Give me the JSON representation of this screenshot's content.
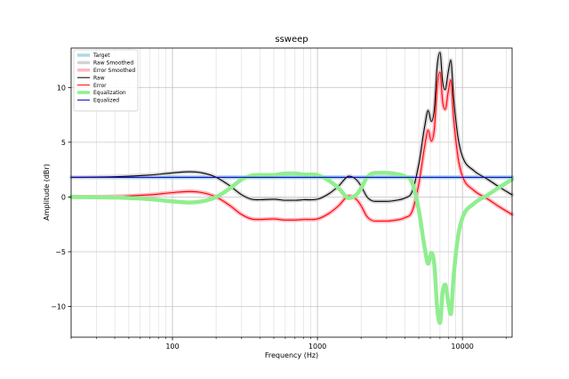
{
  "chart_data": {
    "type": "line",
    "title": "ssweep",
    "xlabel": "Frequency (Hz)",
    "ylabel": "Amplitude (dBr)",
    "xscale": "log",
    "xlim": [
      20,
      22000
    ],
    "ylim": [
      -12.8,
      13.6
    ],
    "grid": true,
    "legend_placement": "top-left",
    "x_tick_labels": [
      {
        "value": 100,
        "label": "100"
      },
      {
        "value": 1000,
        "label": "1000"
      },
      {
        "value": 10000,
        "label": "10000"
      }
    ],
    "y_tick_labels": [
      {
        "value": -10,
        "label": "−10"
      },
      {
        "value": -5,
        "label": "−5"
      },
      {
        "value": 0,
        "label": "0"
      },
      {
        "value": 5,
        "label": "5"
      },
      {
        "value": 10,
        "label": "10"
      }
    ],
    "series": [
      {
        "name": "Target",
        "color": "#add8e6",
        "style": "thick",
        "points": [
          [
            20,
            1.8
          ],
          [
            22000,
            1.8
          ]
        ]
      },
      {
        "name": "Raw Smoothed",
        "color": "#d3d3d3",
        "style": "thick",
        "points": [
          [
            20,
            1.8
          ],
          [
            40,
            1.85
          ],
          [
            70,
            2.0
          ],
          [
            100,
            2.2
          ],
          [
            130,
            2.3
          ],
          [
            160,
            2.2
          ],
          [
            200,
            1.8
          ],
          [
            250,
            1.0
          ],
          [
            300,
            0.2
          ],
          [
            350,
            -0.2
          ],
          [
            400,
            -0.25
          ],
          [
            500,
            -0.2
          ],
          [
            600,
            -0.3
          ],
          [
            700,
            -0.3
          ],
          [
            800,
            -0.25
          ],
          [
            1000,
            -0.2
          ],
          [
            1200,
            0.3
          ],
          [
            1400,
            1.0
          ],
          [
            1650,
            1.9
          ],
          [
            1850,
            1.6
          ],
          [
            2000,
            1.0
          ],
          [
            2200,
            0.0
          ],
          [
            2500,
            -0.4
          ],
          [
            3000,
            -0.4
          ],
          [
            3500,
            -0.3
          ],
          [
            4000,
            -0.1
          ],
          [
            4500,
            0.5
          ],
          [
            5000,
            3.0
          ],
          [
            5500,
            6.5
          ],
          [
            5800,
            7.9
          ],
          [
            6100,
            6.9
          ],
          [
            6400,
            8.0
          ],
          [
            6700,
            12.0
          ],
          [
            7000,
            13.2
          ],
          [
            7300,
            10.5
          ],
          [
            7600,
            9.8
          ],
          [
            8000,
            11.5
          ],
          [
            8300,
            12.5
          ],
          [
            8700,
            9.0
          ],
          [
            9300,
            5.5
          ],
          [
            10000,
            3.7
          ],
          [
            12000,
            2.4
          ],
          [
            15000,
            1.6
          ],
          [
            18000,
            0.9
          ],
          [
            22000,
            0.2
          ]
        ]
      },
      {
        "name": "Error Smoothed",
        "color": "#ffb6c1",
        "style": "thick",
        "points": [
          [
            20,
            0.0
          ],
          [
            40,
            0.05
          ],
          [
            70,
            0.2
          ],
          [
            100,
            0.4
          ],
          [
            130,
            0.5
          ],
          [
            160,
            0.4
          ],
          [
            200,
            0.0
          ],
          [
            250,
            -0.8
          ],
          [
            300,
            -1.6
          ],
          [
            350,
            -2.0
          ],
          [
            400,
            -2.05
          ],
          [
            500,
            -2.0
          ],
          [
            600,
            -2.1
          ],
          [
            700,
            -2.1
          ],
          [
            800,
            -2.05
          ],
          [
            1000,
            -2.0
          ],
          [
            1200,
            -1.5
          ],
          [
            1400,
            -0.8
          ],
          [
            1650,
            0.1
          ],
          [
            1850,
            -0.2
          ],
          [
            2000,
            -0.8
          ],
          [
            2200,
            -1.8
          ],
          [
            2500,
            -2.2
          ],
          [
            3000,
            -2.2
          ],
          [
            3500,
            -2.1
          ],
          [
            4000,
            -1.9
          ],
          [
            4500,
            -1.3
          ],
          [
            5000,
            1.2
          ],
          [
            5500,
            4.7
          ],
          [
            5800,
            6.1
          ],
          [
            6100,
            5.1
          ],
          [
            6400,
            6.2
          ],
          [
            6700,
            10.2
          ],
          [
            7000,
            11.4
          ],
          [
            7300,
            8.7
          ],
          [
            7600,
            8.0
          ],
          [
            8000,
            9.7
          ],
          [
            8300,
            10.7
          ],
          [
            8700,
            7.2
          ],
          [
            9300,
            3.7
          ],
          [
            10000,
            1.9
          ],
          [
            12000,
            0.6
          ],
          [
            15000,
            -0.2
          ],
          [
            18000,
            -0.9
          ],
          [
            22000,
            -1.6
          ]
        ]
      },
      {
        "name": "Raw",
        "color": "#000000",
        "style": "thin",
        "points": [
          [
            20,
            1.8
          ],
          [
            40,
            1.85
          ],
          [
            70,
            2.0
          ],
          [
            100,
            2.2
          ],
          [
            130,
            2.3
          ],
          [
            160,
            2.2
          ],
          [
            200,
            1.8
          ],
          [
            250,
            1.0
          ],
          [
            300,
            0.2
          ],
          [
            350,
            -0.2
          ],
          [
            400,
            -0.25
          ],
          [
            500,
            -0.2
          ],
          [
            600,
            -0.3
          ],
          [
            700,
            -0.3
          ],
          [
            800,
            -0.25
          ],
          [
            1000,
            -0.2
          ],
          [
            1200,
            0.3
          ],
          [
            1400,
            1.0
          ],
          [
            1650,
            1.9
          ],
          [
            1850,
            1.6
          ],
          [
            2000,
            1.0
          ],
          [
            2200,
            0.0
          ],
          [
            2500,
            -0.4
          ],
          [
            3000,
            -0.4
          ],
          [
            3500,
            -0.3
          ],
          [
            4000,
            -0.1
          ],
          [
            4500,
            0.5
          ],
          [
            5000,
            3.0
          ],
          [
            5500,
            6.5
          ],
          [
            5800,
            7.9
          ],
          [
            6100,
            6.9
          ],
          [
            6400,
            8.0
          ],
          [
            6700,
            12.0
          ],
          [
            7000,
            13.2
          ],
          [
            7300,
            10.5
          ],
          [
            7600,
            9.8
          ],
          [
            8000,
            11.5
          ],
          [
            8300,
            12.5
          ],
          [
            8700,
            9.0
          ],
          [
            9300,
            5.5
          ],
          [
            10000,
            3.7
          ],
          [
            12000,
            2.4
          ],
          [
            15000,
            1.6
          ],
          [
            18000,
            0.9
          ],
          [
            22000,
            0.2
          ]
        ]
      },
      {
        "name": "Error",
        "color": "#ff0000",
        "style": "thin",
        "points": [
          [
            20,
            0.0
          ],
          [
            40,
            0.05
          ],
          [
            70,
            0.2
          ],
          [
            100,
            0.4
          ],
          [
            130,
            0.5
          ],
          [
            160,
            0.4
          ],
          [
            200,
            0.0
          ],
          [
            250,
            -0.8
          ],
          [
            300,
            -1.6
          ],
          [
            350,
            -2.0
          ],
          [
            400,
            -2.05
          ],
          [
            500,
            -2.0
          ],
          [
            600,
            -2.1
          ],
          [
            700,
            -2.1
          ],
          [
            800,
            -2.05
          ],
          [
            1000,
            -2.0
          ],
          [
            1200,
            -1.5
          ],
          [
            1400,
            -0.8
          ],
          [
            1650,
            0.1
          ],
          [
            1850,
            -0.2
          ],
          [
            2000,
            -0.8
          ],
          [
            2200,
            -1.8
          ],
          [
            2500,
            -2.2
          ],
          [
            3000,
            -2.2
          ],
          [
            3500,
            -2.1
          ],
          [
            4000,
            -1.9
          ],
          [
            4500,
            -1.3
          ],
          [
            5000,
            1.2
          ],
          [
            5500,
            4.7
          ],
          [
            5800,
            6.1
          ],
          [
            6100,
            5.1
          ],
          [
            6400,
            6.2
          ],
          [
            6700,
            10.2
          ],
          [
            7000,
            11.4
          ],
          [
            7300,
            8.7
          ],
          [
            7600,
            8.0
          ],
          [
            8000,
            9.7
          ],
          [
            8300,
            10.7
          ],
          [
            8700,
            7.2
          ],
          [
            9300,
            3.7
          ],
          [
            10000,
            1.9
          ],
          [
            12000,
            0.6
          ],
          [
            15000,
            -0.2
          ],
          [
            18000,
            -0.9
          ],
          [
            22000,
            -1.6
          ]
        ]
      },
      {
        "name": "Equalization",
        "color": "#90ee90",
        "style": "thick",
        "points": [
          [
            20,
            0.0
          ],
          [
            40,
            -0.05
          ],
          [
            70,
            -0.2
          ],
          [
            100,
            -0.4
          ],
          [
            130,
            -0.5
          ],
          [
            160,
            -0.4
          ],
          [
            200,
            0.0
          ],
          [
            250,
            0.8
          ],
          [
            300,
            1.6
          ],
          [
            350,
            1.95
          ],
          [
            400,
            2.0
          ],
          [
            500,
            2.0
          ],
          [
            600,
            2.15
          ],
          [
            700,
            2.15
          ],
          [
            800,
            2.05
          ],
          [
            1000,
            2.0
          ],
          [
            1200,
            1.5
          ],
          [
            1400,
            0.8
          ],
          [
            1650,
            -0.1
          ],
          [
            1850,
            0.2
          ],
          [
            2000,
            0.8
          ],
          [
            2200,
            1.8
          ],
          [
            2500,
            2.2
          ],
          [
            3000,
            2.2
          ],
          [
            3500,
            2.1
          ],
          [
            4000,
            1.9
          ],
          [
            4500,
            1.3
          ],
          [
            5000,
            -1.2
          ],
          [
            5500,
            -4.7
          ],
          [
            5800,
            -6.1
          ],
          [
            6100,
            -5.1
          ],
          [
            6400,
            -6.2
          ],
          [
            6700,
            -10.2
          ],
          [
            7000,
            -11.5
          ],
          [
            7300,
            -8.7
          ],
          [
            7600,
            -8.0
          ],
          [
            8000,
            -9.7
          ],
          [
            8300,
            -10.7
          ],
          [
            8700,
            -7.2
          ],
          [
            9300,
            -3.7
          ],
          [
            10000,
            -1.9
          ],
          [
            12000,
            -0.6
          ],
          [
            15000,
            0.2
          ],
          [
            18000,
            0.9
          ],
          [
            22000,
            1.6
          ]
        ]
      },
      {
        "name": "Equalized",
        "color": "#0000cd",
        "style": "thin",
        "points": [
          [
            20,
            1.8
          ],
          [
            22000,
            1.8
          ]
        ]
      }
    ]
  }
}
